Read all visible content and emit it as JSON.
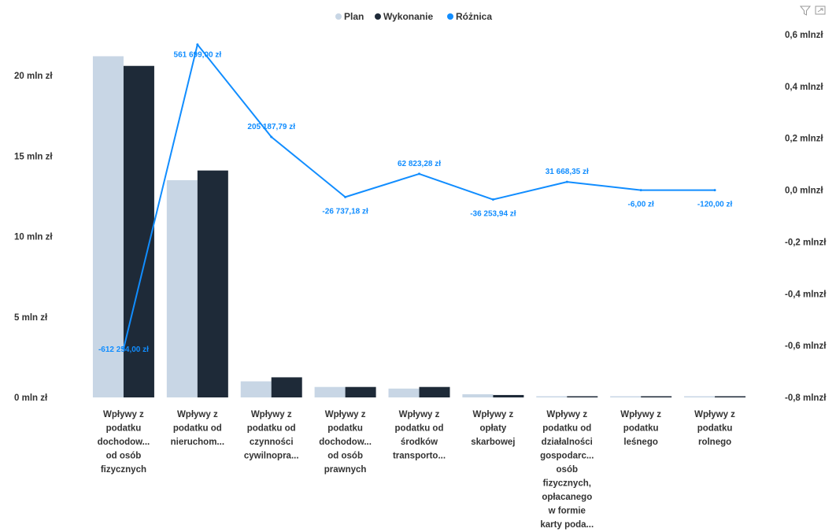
{
  "chart_data": {
    "type": "bar",
    "categories": [
      [
        "Wpływy z",
        "podatku",
        "dochodow...",
        "od osób",
        "fizycznych"
      ],
      [
        "Wpływy z",
        "podatku od",
        "nieruchom..."
      ],
      [
        "Wpływy z",
        "podatku od",
        "czynności",
        "cywilnopra..."
      ],
      [
        "Wpływy z",
        "podatku",
        "dochodow...",
        "od osób",
        "prawnych"
      ],
      [
        "Wpływy z",
        "podatku od",
        "środków",
        "transporto..."
      ],
      [
        "Wpływy z",
        "opłaty",
        "skarbowej"
      ],
      [
        "Wpływy z",
        "podatku od",
        "działalności",
        "gospodarc...",
        "osób",
        "fizycznych,",
        "opłacanego",
        "w formie",
        "karty poda..."
      ],
      [
        "Wpływy z",
        "podatku",
        "leśnego"
      ],
      [
        "Wpływy z",
        "podatku",
        "rolnego"
      ]
    ],
    "series": [
      {
        "name": "Plan",
        "type": "bar",
        "axis": "left",
        "color": "#C8D6E5",
        "values": [
          21.2,
          13.5,
          1.0,
          0.65,
          0.55,
          0.2,
          0.05,
          0.05,
          0.05
        ]
      },
      {
        "name": "Wykonanie",
        "type": "bar",
        "axis": "left",
        "color": "#1E2A38",
        "values": [
          20.6,
          14.1,
          1.25,
          0.65,
          0.65,
          0.15,
          0.05,
          0.05,
          0.05
        ]
      },
      {
        "name": "Różnica",
        "type": "line",
        "axis": "right",
        "color": "#118DFF",
        "values": [
          -0.612,
          0.5617,
          0.2052,
          -0.0267,
          0.0628,
          -0.0363,
          0.0317,
          -6e-06,
          -0.00012
        ],
        "labels": [
          "-612 254,00 zł",
          "561 699,00 zł",
          "205 187,79 zł",
          "-26 737,18 zł",
          "62 823,28 zł",
          "-36 253,94 zł",
          "31 668,35 zł",
          "-6,00 zł",
          "-120,00 zł"
        ]
      }
    ],
    "y_left": {
      "min": 0,
      "max": 20,
      "ticks": [
        0,
        5,
        10,
        15,
        20
      ],
      "tick_labels": [
        "0 mln zł",
        "5 mln zł",
        "10 mln zł",
        "15 mln zł",
        "20 mln zł"
      ]
    },
    "y_right": {
      "min": -0.8,
      "max": 0.6,
      "ticks": [
        -0.8,
        -0.6,
        -0.4,
        -0.2,
        0.0,
        0.2,
        0.4,
        0.6
      ],
      "tick_labels": [
        "-0,8 mlnzł",
        "-0,6 mlnzł",
        "-0,4 mlnzł",
        "-0,2 mlnzł",
        "0,0 mlnzł",
        "0,2 mlnzł",
        "0,4 mlnzł",
        "0,6 mlnzł"
      ]
    },
    "legend": {
      "placement": "top-center",
      "items": [
        "Plan",
        "Wykonanie",
        "Różnica"
      ]
    },
    "grid": false
  },
  "toolbar": {
    "icons": [
      "filter-icon",
      "focus-mode-icon"
    ]
  }
}
